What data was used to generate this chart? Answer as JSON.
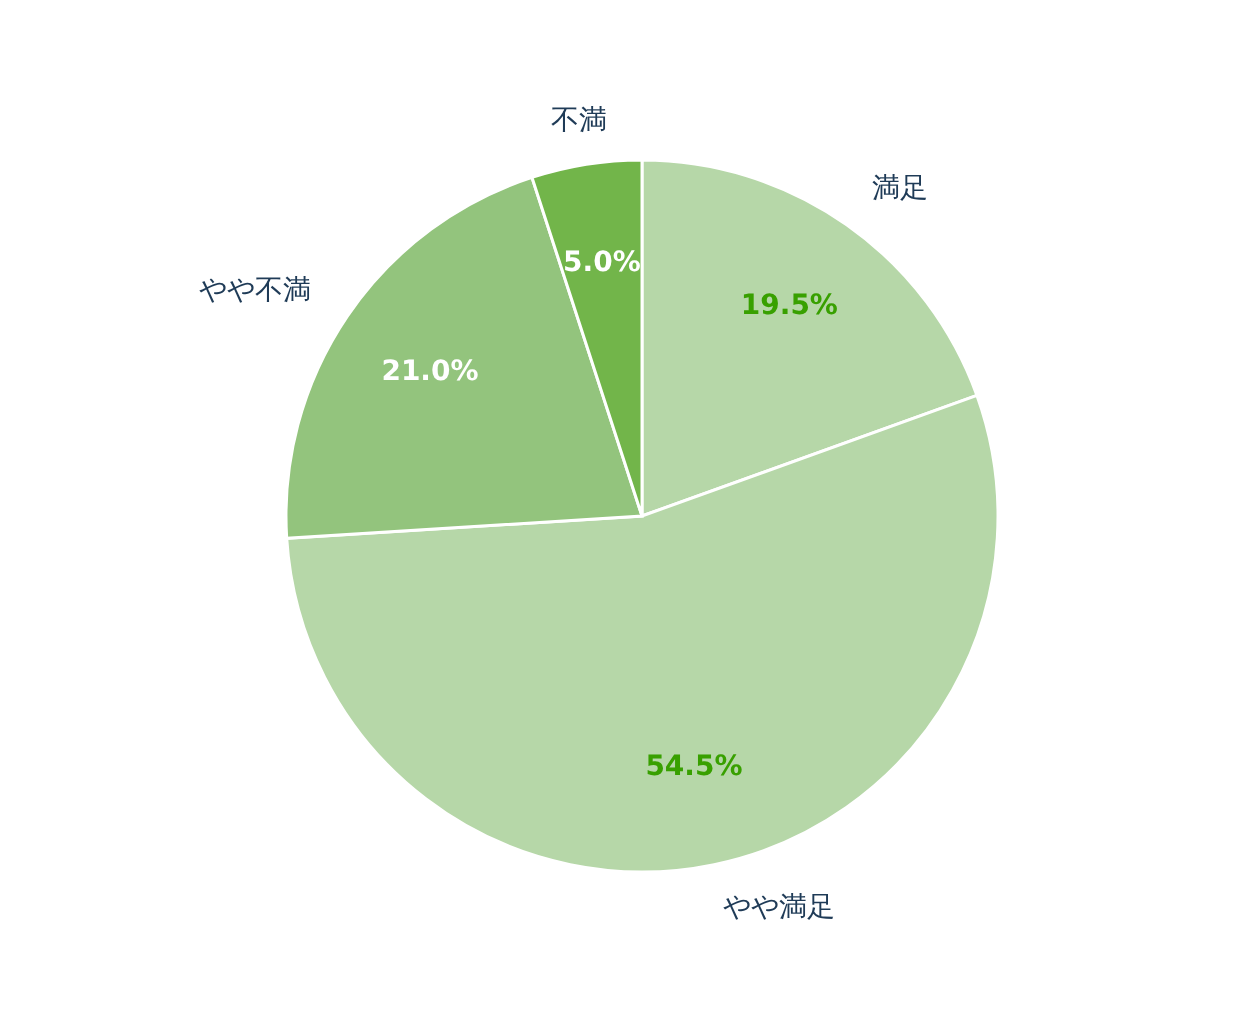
{
  "chart_data": {
    "type": "pie",
    "categories": [
      "満足",
      "やや満足",
      "やや不満",
      "不満"
    ],
    "values": [
      19.5,
      54.5,
      21.0,
      5.0
    ],
    "value_labels": [
      "19.5%",
      "54.5%",
      "21.0%",
      "5.0%"
    ],
    "colors": [
      "#b6d7a8",
      "#b6d7a8",
      "#93c47d",
      "#72b54a"
    ]
  }
}
